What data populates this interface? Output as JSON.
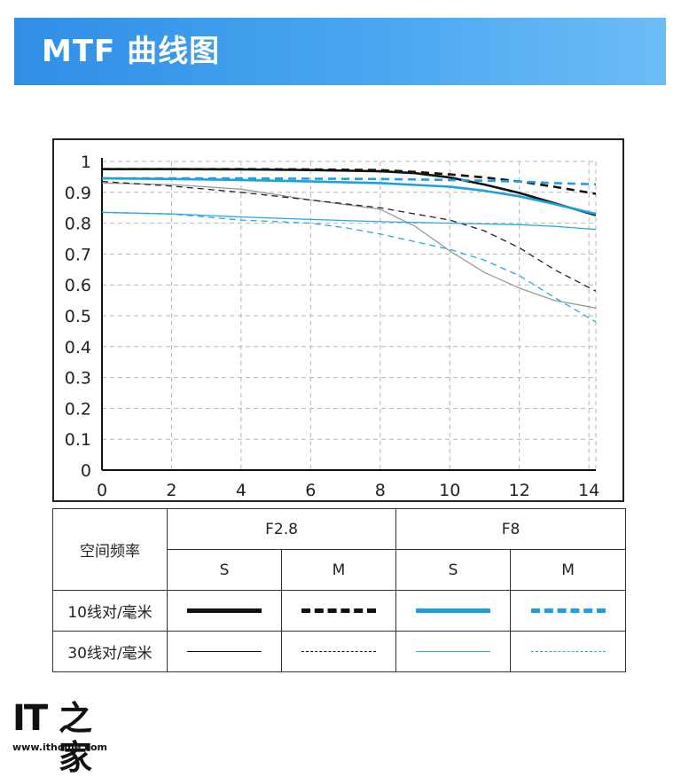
{
  "banner": {
    "title": "MTF 曲线图"
  },
  "chart_data": {
    "type": "line",
    "title": "",
    "xlabel": "",
    "ylabel": "",
    "xlim": [
      0,
      14.2
    ],
    "ylim": [
      0,
      1
    ],
    "x_ticks": [
      "0",
      "2",
      "4",
      "6",
      "8",
      "10",
      "12",
      "14"
    ],
    "y_ticks": [
      "0",
      "0.1",
      "0.2",
      "0.3",
      "0.4",
      "0.5",
      "0.6",
      "0.7",
      "0.8",
      "0.9",
      "1"
    ],
    "grid": true,
    "series": [
      {
        "key": "f28_10_s",
        "color": "#111111",
        "style": "solid",
        "weight": "bold",
        "points": [
          [
            0,
            0.975
          ],
          [
            2,
            0.975
          ],
          [
            4,
            0.974
          ],
          [
            6,
            0.972
          ],
          [
            8,
            0.968
          ],
          [
            9,
            0.962
          ],
          [
            10,
            0.948
          ],
          [
            11,
            0.925
          ],
          [
            12,
            0.898
          ],
          [
            13,
            0.865
          ],
          [
            14.2,
            0.826
          ]
        ]
      },
      {
        "key": "f28_10_m",
        "color": "#111111",
        "style": "dashed",
        "weight": "bold",
        "points": [
          [
            0,
            0.975
          ],
          [
            2,
            0.975
          ],
          [
            4,
            0.975
          ],
          [
            6,
            0.974
          ],
          [
            8,
            0.972
          ],
          [
            9,
            0.966
          ],
          [
            10,
            0.958
          ],
          [
            11,
            0.948
          ],
          [
            12,
            0.935
          ],
          [
            13,
            0.918
          ],
          [
            14.2,
            0.895
          ]
        ]
      },
      {
        "key": "f8_10_s",
        "color": "#1ea0e0",
        "style": "solid",
        "weight": "bold",
        "points": [
          [
            0,
            0.945
          ],
          [
            2,
            0.943
          ],
          [
            4,
            0.94
          ],
          [
            6,
            0.935
          ],
          [
            8,
            0.93
          ],
          [
            10,
            0.918
          ],
          [
            11,
            0.905
          ],
          [
            12,
            0.887
          ],
          [
            13,
            0.862
          ],
          [
            14.2,
            0.83
          ]
        ]
      },
      {
        "key": "f8_10_m",
        "color": "#1ea0e0",
        "style": "dashed",
        "weight": "bold",
        "points": [
          [
            0,
            0.945
          ],
          [
            2,
            0.945
          ],
          [
            4,
            0.945
          ],
          [
            6,
            0.944
          ],
          [
            8,
            0.943
          ],
          [
            10,
            0.94
          ],
          [
            12,
            0.935
          ],
          [
            13,
            0.93
          ],
          [
            14.2,
            0.926
          ]
        ]
      },
      {
        "key": "f28_30_s",
        "color": "#999999",
        "style": "solid",
        "weight": "thin",
        "points": [
          [
            0,
            0.93
          ],
          [
            2,
            0.925
          ],
          [
            4,
            0.91
          ],
          [
            6,
            0.875
          ],
          [
            8,
            0.845
          ],
          [
            9,
            0.79
          ],
          [
            10,
            0.71
          ],
          [
            11,
            0.64
          ],
          [
            12,
            0.59
          ],
          [
            13,
            0.55
          ],
          [
            14.2,
            0.525
          ]
        ]
      },
      {
        "key": "f28_30_m",
        "color": "#222222",
        "style": "dashed",
        "weight": "thin",
        "points": [
          [
            0,
            0.935
          ],
          [
            2,
            0.92
          ],
          [
            4,
            0.9
          ],
          [
            6,
            0.875
          ],
          [
            8,
            0.85
          ],
          [
            9,
            0.83
          ],
          [
            10,
            0.81
          ],
          [
            11,
            0.775
          ],
          [
            12,
            0.72
          ],
          [
            13,
            0.65
          ],
          [
            14.2,
            0.58
          ]
        ]
      },
      {
        "key": "f8_30_s",
        "color": "#29a6e6",
        "style": "solid",
        "weight": "thin",
        "points": [
          [
            0,
            0.835
          ],
          [
            2,
            0.83
          ],
          [
            4,
            0.82
          ],
          [
            6,
            0.812
          ],
          [
            8,
            0.805
          ],
          [
            10,
            0.8
          ],
          [
            12,
            0.795
          ],
          [
            13,
            0.79
          ],
          [
            14.2,
            0.78
          ]
        ]
      },
      {
        "key": "f8_30_m",
        "color": "#29a6e6",
        "style": "dashed",
        "weight": "thin",
        "points": [
          [
            0,
            0.835
          ],
          [
            2,
            0.83
          ],
          [
            4,
            0.81
          ],
          [
            6,
            0.8
          ],
          [
            7,
            0.785
          ],
          [
            8,
            0.765
          ],
          [
            9,
            0.74
          ],
          [
            10,
            0.715
          ],
          [
            11,
            0.68
          ],
          [
            12,
            0.63
          ],
          [
            13,
            0.56
          ],
          [
            14.2,
            0.48
          ]
        ]
      }
    ]
  },
  "legend": {
    "row_header": "空间频率",
    "groups": [
      "F2.8",
      "F8"
    ],
    "sub_headers": [
      "S",
      "M",
      "S",
      "M"
    ],
    "rows": [
      "10线对/毫米",
      "30线对/毫米"
    ]
  },
  "logo": {
    "it": "IT",
    "cn": "之家",
    "url": "www.ithome.com"
  }
}
